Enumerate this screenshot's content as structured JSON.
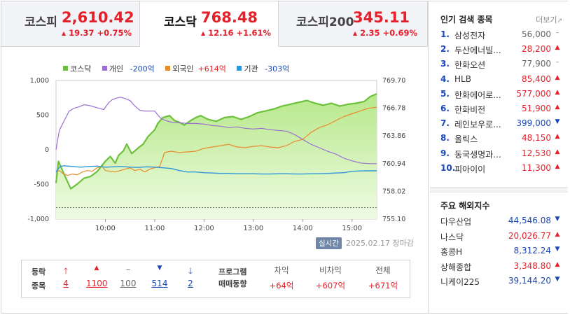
{
  "tabs": [
    {
      "name": "코스피",
      "value": "2,610.42",
      "change": "19.37 +0.75%"
    },
    {
      "name": "코스닥",
      "value": "768.48",
      "change": "12.16 +1.61%"
    },
    {
      "name": "코스피200",
      "value": "345.11",
      "change": "2.35 +0.69%"
    }
  ],
  "legend": {
    "kosdaq": "코스닥",
    "individual_name": "개인",
    "individual_val": "-200억",
    "foreign_name": "외국인",
    "foreign_val": "+614억",
    "inst_name": "기관",
    "inst_val": "-303억"
  },
  "colors": {
    "up": "#e5202a",
    "down": "#1a47b8",
    "kosdaq": "#6cc13c",
    "individual": "#9b6fd1",
    "foreign": "#e98b2a",
    "inst": "#2f97d9"
  },
  "chart_data": {
    "type": "line",
    "x_ticks": [
      "10:00",
      "11:00",
      "12:00",
      "13:00",
      "14:00",
      "15:00"
    ],
    "left_axis": {
      "ticks": [
        "1,000",
        "500",
        "0",
        "-500",
        "-1,000"
      ],
      "range": [
        -1000,
        1000
      ]
    },
    "right_axis": {
      "ticks": [
        "769.70",
        "766.78",
        "763.86",
        "760.94",
        "758.02",
        "755.10"
      ],
      "range": [
        755.1,
        769.7
      ]
    },
    "x_range": [
      "09:00",
      "15:30"
    ],
    "baseline": 756.32,
    "series": [
      {
        "name": "코스닥",
        "axis": "right",
        "x": [
          "09:00",
          "09:03",
          "09:10",
          "09:18",
          "09:26",
          "09:34",
          "09:42",
          "09:50",
          "10:00",
          "10:06",
          "10:12",
          "10:16",
          "10:22",
          "10:26",
          "10:32",
          "10:40",
          "10:46",
          "10:52",
          "11:00",
          "11:04",
          "11:10",
          "11:18",
          "11:24",
          "11:30",
          "11:36",
          "11:44",
          "11:50",
          "11:56",
          "12:05",
          "12:15",
          "12:25",
          "12:35",
          "12:45",
          "12:55",
          "13:05",
          "13:15",
          "13:25",
          "13:35",
          "13:45",
          "13:55",
          "14:05",
          "14:15",
          "14:25",
          "14:35",
          "14:45",
          "14:55",
          "15:05",
          "15:15",
          "15:22",
          "15:30"
        ],
        "values": [
          758.9,
          761.2,
          759.8,
          758.3,
          758.8,
          759.4,
          759.6,
          760.1,
          761.2,
          761.7,
          761.0,
          761.8,
          762.3,
          763.0,
          762.0,
          762.6,
          763.0,
          763.8,
          764.5,
          765.2,
          765.8,
          766.0,
          765.5,
          765.3,
          765.0,
          765.5,
          765.8,
          766.0,
          765.6,
          765.4,
          765.8,
          765.9,
          765.6,
          765.9,
          766.3,
          766.5,
          766.7,
          767.0,
          767.2,
          767.4,
          767.6,
          767.3,
          767.1,
          767.3,
          767.0,
          767.2,
          767.3,
          767.5,
          768.0,
          768.3
        ]
      },
      {
        "name": "개인",
        "axis": "left",
        "x": [
          "09:00",
          "09:04",
          "09:10",
          "09:16",
          "09:22",
          "09:28",
          "09:34",
          "09:40",
          "09:46",
          "09:52",
          "09:58",
          "10:04",
          "10:08",
          "10:12",
          "10:18",
          "10:24",
          "10:30",
          "10:36",
          "10:42",
          "10:48",
          "10:54",
          "11:00",
          "11:04",
          "11:08",
          "11:14",
          "11:20",
          "11:30",
          "11:40",
          "11:50",
          "12:00",
          "12:10",
          "12:20",
          "12:30",
          "12:40",
          "12:50",
          "13:00",
          "13:10",
          "13:20",
          "13:30",
          "13:40",
          "13:50",
          "14:00",
          "14:10",
          "14:20",
          "14:30",
          "14:40",
          "14:50",
          "15:00",
          "15:10",
          "15:20",
          "15:30"
        ],
        "values": [
          0,
          280,
          420,
          560,
          600,
          620,
          650,
          640,
          620,
          600,
          580,
          680,
          720,
          740,
          760,
          740,
          710,
          630,
          570,
          560,
          560,
          560,
          500,
          450,
          420,
          400,
          390,
          380,
          380,
          370,
          350,
          340,
          320,
          330,
          310,
          300,
          310,
          290,
          280,
          270,
          220,
          150,
          80,
          30,
          -20,
          -60,
          -120,
          -160,
          -190,
          -200,
          -200
        ]
      },
      {
        "name": "외국인",
        "axis": "left",
        "x": [
          "09:00",
          "09:04",
          "09:08",
          "09:14",
          "09:20",
          "09:26",
          "09:32",
          "09:38",
          "09:44",
          "09:50",
          "09:56",
          "10:00",
          "10:06",
          "10:12",
          "10:18",
          "10:24",
          "10:30",
          "10:36",
          "10:42",
          "10:48",
          "10:54",
          "11:00",
          "11:06",
          "11:12",
          "11:20",
          "11:30",
          "11:40",
          "11:50",
          "12:00",
          "12:10",
          "12:20",
          "12:30",
          "12:40",
          "12:50",
          "13:00",
          "13:10",
          "13:20",
          "13:30",
          "13:40",
          "13:50",
          "14:00",
          "14:10",
          "14:20",
          "14:30",
          "14:40",
          "14:50",
          "15:00",
          "15:10",
          "15:20",
          "15:30"
        ],
        "values": [
          -320,
          -300,
          -340,
          -370,
          -350,
          -360,
          -320,
          -300,
          -310,
          -260,
          -240,
          -300,
          -310,
          -320,
          -300,
          -280,
          -260,
          -300,
          -280,
          -320,
          -280,
          -260,
          -240,
          -40,
          -20,
          -40,
          -30,
          -20,
          20,
          40,
          60,
          80,
          40,
          30,
          50,
          60,
          40,
          30,
          60,
          120,
          150,
          250,
          320,
          360,
          420,
          480,
          520,
          560,
          600,
          614
        ]
      },
      {
        "name": "기관",
        "axis": "left",
        "x": [
          "09:00",
          "09:05",
          "09:10",
          "09:15",
          "09:20",
          "09:30",
          "09:40",
          "09:50",
          "10:00",
          "10:10",
          "10:20",
          "10:30",
          "10:40",
          "10:50",
          "11:00",
          "11:10",
          "11:20",
          "11:30",
          "11:40",
          "11:50",
          "12:00",
          "12:10",
          "12:20",
          "12:30",
          "12:40",
          "12:50",
          "13:00",
          "13:10",
          "13:20",
          "13:30",
          "13:40",
          "13:50",
          "14:00",
          "14:10",
          "14:20",
          "14:30",
          "14:40",
          "14:50",
          "15:00",
          "15:10",
          "15:20",
          "15:30"
        ],
        "values": [
          -320,
          -240,
          -230,
          -235,
          -240,
          -250,
          -240,
          -235,
          -250,
          -245,
          -240,
          -250,
          -255,
          -245,
          -250,
          -260,
          -270,
          -300,
          -320,
          -320,
          -330,
          -335,
          -340,
          -340,
          -345,
          -345,
          -345,
          -350,
          -350,
          -345,
          -345,
          -350,
          -350,
          -345,
          -345,
          -340,
          -335,
          -330,
          -310,
          -305,
          -303,
          -303
        ]
      }
    ]
  },
  "status": {
    "badge": "실시간",
    "date": "2025.02.17",
    "closed": "장마감"
  },
  "stats": {
    "label_updown": "등락",
    "label_stocks": "종목",
    "counts": [
      "4",
      "1100",
      "100",
      "514",
      "2"
    ],
    "program_l1": "프로그램",
    "program_l2": "매매동향",
    "headers": [
      "차익",
      "비차익",
      "전체"
    ],
    "values": [
      "+64억",
      "+607억",
      "+671억"
    ]
  },
  "popular": {
    "title": "인기 검색 종목",
    "more": "더보기",
    "items": [
      {
        "rank": "1.",
        "name": "삼성전자",
        "price": "56,000",
        "dir": "flat"
      },
      {
        "rank": "2.",
        "name": "두산에너빌...",
        "price": "28,200",
        "dir": "up"
      },
      {
        "rank": "3.",
        "name": "한화오션",
        "price": "77,900",
        "dir": "flat"
      },
      {
        "rank": "4.",
        "name": "HLB",
        "price": "85,400",
        "dir": "up"
      },
      {
        "rank": "5.",
        "name": "한화에어로...",
        "price": "577,000",
        "dir": "up"
      },
      {
        "rank": "6.",
        "name": "한화비전",
        "price": "51,900",
        "dir": "up"
      },
      {
        "rank": "7.",
        "name": "레인보우로...",
        "price": "399,000",
        "dir": "down"
      },
      {
        "rank": "8.",
        "name": "올릭스",
        "price": "48,150",
        "dir": "up"
      },
      {
        "rank": "9.",
        "name": "동국생명과...",
        "price": "12,530",
        "dir": "up"
      },
      {
        "rank": "10.",
        "name": "피아이이",
        "price": "11,300",
        "dir": "up"
      }
    ]
  },
  "world": {
    "title": "주요 해외지수",
    "items": [
      {
        "name": "다우산업",
        "price": "44,546.08",
        "dir": "down"
      },
      {
        "name": "나스닥",
        "price": "20,026.77",
        "dir": "up"
      },
      {
        "name": "홍콩H",
        "price": "8,312.24",
        "dir": "down"
      },
      {
        "name": "상해종합",
        "price": "3,348.80",
        "dir": "up"
      },
      {
        "name": "니케이225",
        "price": "39,144.20",
        "dir": "down"
      }
    ]
  }
}
